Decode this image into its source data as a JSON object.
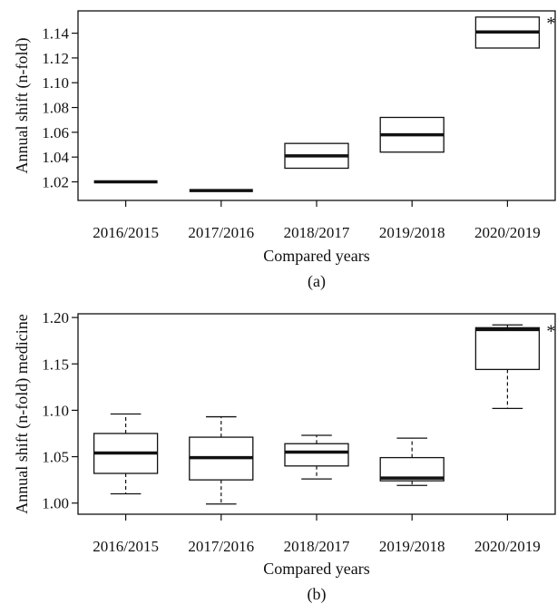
{
  "chart_data": [
    {
      "type": "box",
      "panel_label": "(a)",
      "ylabel": "Annual shift (n-fold)",
      "xlabel": "Compared years",
      "categories": [
        "2016/2015",
        "2017/2016",
        "2018/2017",
        "2019/2018",
        "2020/2019"
      ],
      "ylim": [
        1.005,
        1.158
      ],
      "yticks": [
        "1.02",
        "1.04",
        "1.06",
        "1.08",
        "1.10",
        "1.12",
        "1.14"
      ],
      "boxes": [
        {
          "q1": 1.02,
          "median": 1.02,
          "q3": 1.02
        },
        {
          "q1": 1.013,
          "median": 1.013,
          "q3": 1.013
        },
        {
          "q1": 1.031,
          "median": 1.041,
          "q3": 1.051
        },
        {
          "q1": 1.044,
          "median": 1.058,
          "q3": 1.072
        },
        {
          "q1": 1.128,
          "median": 1.141,
          "q3": 1.153
        }
      ],
      "significance": [
        {
          "category": "2020/2019",
          "mark": "*"
        }
      ]
    },
    {
      "type": "box",
      "panel_label": "(b)",
      "ylabel": "Annual shift (n-fold) medicine",
      "xlabel": "Compared years",
      "categories": [
        "2016/2015",
        "2017/2016",
        "2018/2017",
        "2019/2018",
        "2020/2019"
      ],
      "ylim": [
        0.988,
        1.204
      ],
      "yticks": [
        "1.00",
        "1.05",
        "1.10",
        "1.15",
        "1.20"
      ],
      "boxes": [
        {
          "min": 1.01,
          "q1": 1.032,
          "median": 1.054,
          "q3": 1.075,
          "max": 1.096
        },
        {
          "min": 0.999,
          "q1": 1.025,
          "median": 1.049,
          "q3": 1.071,
          "max": 1.093
        },
        {
          "min": 1.026,
          "q1": 1.04,
          "median": 1.055,
          "q3": 1.064,
          "max": 1.073
        },
        {
          "min": 1.019,
          "q1": 1.024,
          "median": 1.027,
          "q3": 1.049,
          "max": 1.07
        },
        {
          "min": 1.102,
          "q1": 1.144,
          "median": 1.187,
          "q3": 1.189,
          "max": 1.192
        }
      ],
      "significance": [
        {
          "category": "2020/2019",
          "mark": "*"
        }
      ]
    }
  ]
}
